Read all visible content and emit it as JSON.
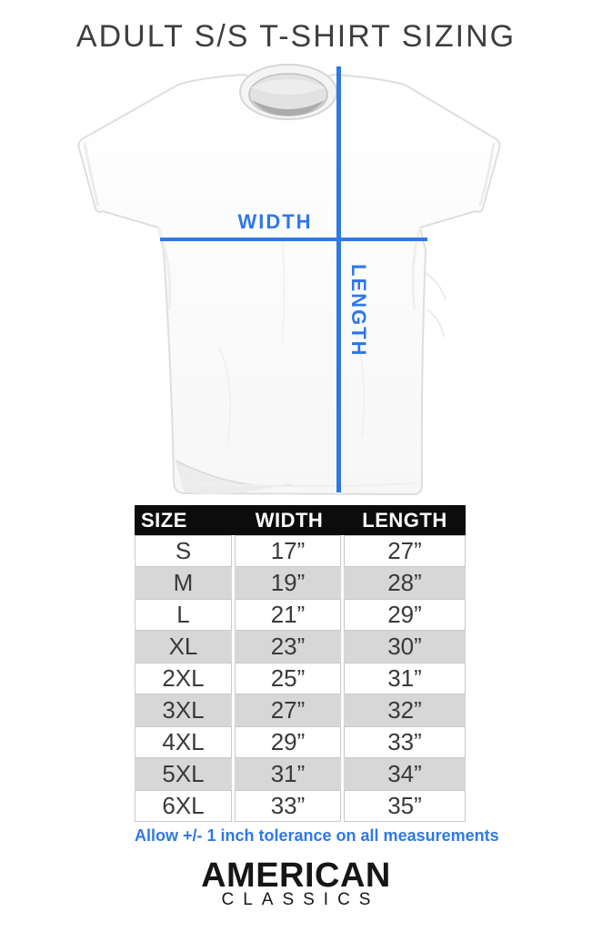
{
  "chart_data": {
    "type": "table",
    "title": "ADULT S/S T-SHIRT SIZING",
    "columns": [
      "SIZE",
      "WIDTH",
      "LENGTH"
    ],
    "rows": [
      [
        "S",
        "17”",
        "27”"
      ],
      [
        "M",
        "19”",
        "28”"
      ],
      [
        "L",
        "21”",
        "29”"
      ],
      [
        "XL",
        "23”",
        "30”"
      ],
      [
        "2XL",
        "25”",
        "31”"
      ],
      [
        "3XL",
        "27”",
        "32”"
      ],
      [
        "4XL",
        "29”",
        "33”"
      ],
      [
        "5XL",
        "31”",
        "34”"
      ],
      [
        "6XL",
        "33”",
        "35”"
      ]
    ],
    "footnote": "Allow +/- 1 inch tolerance on all measurements",
    "layout_hints": "black header row, alternating white/gray body rows, measurements in inches"
  },
  "diagram": {
    "width_label": "WIDTH",
    "length_label": "LENGTH"
  },
  "brand": {
    "name": "AMERICAN",
    "subname": "CLASSICS"
  },
  "colors": {
    "accent_blue": "#2e78e8",
    "header_bg": "#0c0c0c",
    "alt_row": "#d7d7d7"
  }
}
